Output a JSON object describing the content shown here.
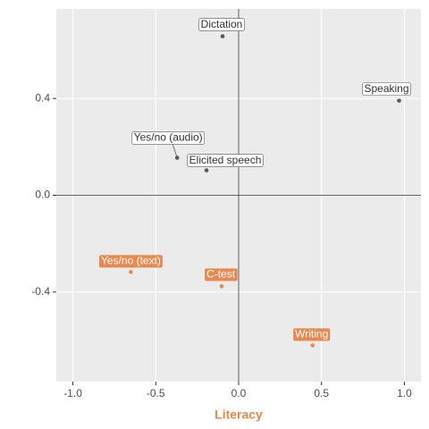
{
  "chart_data": {
    "type": "scatter",
    "x_label": "Literacy",
    "x_label_color": "#e8894f",
    "points": [
      {
        "label": "Dictation",
        "x": -0.097,
        "y": 0.657,
        "color": "#595959"
      },
      {
        "label": "Speaking",
        "x": 0.968,
        "y": 0.391,
        "color": "#595959"
      },
      {
        "label": "Yes/no (audio)",
        "x": -0.371,
        "y": 0.155,
        "color": "#595959"
      },
      {
        "label": "Elicited speech",
        "x": -0.194,
        "y": 0.103,
        "color": "#595959"
      },
      {
        "label": "Yes/no (text)",
        "x": -0.65,
        "y": -0.317,
        "color": "#e8894f"
      },
      {
        "label": "C-test",
        "x": -0.102,
        "y": -0.376,
        "color": "#e8894f"
      },
      {
        "label": "Writing",
        "x": 0.446,
        "y": -0.62,
        "color": "#e8894f"
      }
    ],
    "xlim": [
      -1.1,
      1.1
    ],
    "ylim": [
      -0.77,
      0.77
    ],
    "xticks": [
      {
        "value": -1,
        "label": "-1.0"
      },
      -0.5,
      {
        "value": 0,
        "label": "0.0"
      },
      0.5,
      {
        "value": 1,
        "label": "1.0"
      }
    ],
    "yticks": [
      -0.4,
      {
        "value": 0,
        "label": "0.0"
      },
      0.4
    ],
    "grid": true
  }
}
